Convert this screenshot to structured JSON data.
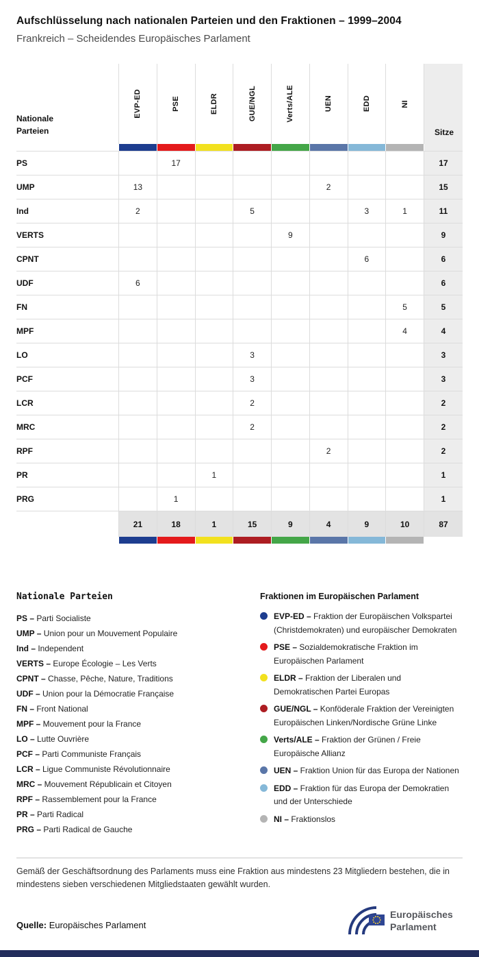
{
  "page": {
    "title": "Aufschlüsselung nach nationalen Parteien und den Fraktionen – 1999–2004",
    "subtitle": "Frankreich – Scheidendes Europäisches Parlament"
  },
  "colors": {
    "footer_bar": "#232d5c",
    "seats_column_bg": "#ededed",
    "totals_row_bg": "#e3e3e3"
  },
  "table": {
    "row_header_label": "Nationale Parteien",
    "seats_label": "Sitze",
    "factions": [
      {
        "label": "EVP-ED",
        "color": "#1d3d8f"
      },
      {
        "label": "PSE",
        "color": "#e41a1c"
      },
      {
        "label": "ELDR",
        "color": "#f2e11e"
      },
      {
        "label": "GUE/NGL",
        "color": "#ad1d22"
      },
      {
        "label": "Verts/ALE",
        "color": "#44a648"
      },
      {
        "label": "UEN",
        "color": "#5a76a8"
      },
      {
        "label": "EDD",
        "color": "#85b8d8"
      },
      {
        "label": "NI",
        "color": "#b4b4b4"
      }
    ],
    "rows": [
      {
        "party": "PS",
        "values": [
          "",
          "17",
          "",
          "",
          "",
          "",
          "",
          ""
        ],
        "seats": "17"
      },
      {
        "party": "UMP",
        "values": [
          "13",
          "",
          "",
          "",
          "",
          "2",
          "",
          ""
        ],
        "seats": "15"
      },
      {
        "party": "Ind",
        "values": [
          "2",
          "",
          "",
          "5",
          "",
          "",
          "3",
          "1"
        ],
        "seats": "11"
      },
      {
        "party": "VERTS",
        "values": [
          "",
          "",
          "",
          "",
          "9",
          "",
          "",
          ""
        ],
        "seats": "9"
      },
      {
        "party": "CPNT",
        "values": [
          "",
          "",
          "",
          "",
          "",
          "",
          "6",
          ""
        ],
        "seats": "6"
      },
      {
        "party": "UDF",
        "values": [
          "6",
          "",
          "",
          "",
          "",
          "",
          "",
          ""
        ],
        "seats": "6"
      },
      {
        "party": "FN",
        "values": [
          "",
          "",
          "",
          "",
          "",
          "",
          "",
          "5"
        ],
        "seats": "5"
      },
      {
        "party": "MPF",
        "values": [
          "",
          "",
          "",
          "",
          "",
          "",
          "",
          "4"
        ],
        "seats": "4"
      },
      {
        "party": "LO",
        "values": [
          "",
          "",
          "",
          "3",
          "",
          "",
          "",
          ""
        ],
        "seats": "3"
      },
      {
        "party": "PCF",
        "values": [
          "",
          "",
          "",
          "3",
          "",
          "",
          "",
          ""
        ],
        "seats": "3"
      },
      {
        "party": "LCR",
        "values": [
          "",
          "",
          "",
          "2",
          "",
          "",
          "",
          ""
        ],
        "seats": "2"
      },
      {
        "party": "MRC",
        "values": [
          "",
          "",
          "",
          "2",
          "",
          "",
          "",
          ""
        ],
        "seats": "2"
      },
      {
        "party": "RPF",
        "values": [
          "",
          "",
          "",
          "",
          "",
          "2",
          "",
          ""
        ],
        "seats": "2"
      },
      {
        "party": "PR",
        "values": [
          "",
          "",
          "1",
          "",
          "",
          "",
          "",
          ""
        ],
        "seats": "1"
      },
      {
        "party": "PRG",
        "values": [
          "",
          "1",
          "",
          "",
          "",
          "",
          "",
          ""
        ],
        "seats": "1"
      }
    ],
    "totals": {
      "values": [
        "21",
        "18",
        "1",
        "15",
        "9",
        "4",
        "9",
        "10"
      ],
      "seats": "87"
    }
  },
  "legend_parties": {
    "title": "Nationale Parteien",
    "items": [
      {
        "abbr": "PS",
        "name": "Parti Socialiste"
      },
      {
        "abbr": "UMP",
        "name": "Union pour un Mouvement Populaire"
      },
      {
        "abbr": "Ind",
        "name": "Independent"
      },
      {
        "abbr": "VERTS",
        "name": "Europe Écologie – Les Verts"
      },
      {
        "abbr": "CPNT",
        "name": "Chasse, Pêche, Nature, Traditions"
      },
      {
        "abbr": "UDF",
        "name": "Union pour la Démocratie Française"
      },
      {
        "abbr": "FN",
        "name": "Front National"
      },
      {
        "abbr": "MPF",
        "name": "Mouvement pour la France"
      },
      {
        "abbr": "LO",
        "name": "Lutte Ouvrière"
      },
      {
        "abbr": "PCF",
        "name": "Parti Communiste Français"
      },
      {
        "abbr": "LCR",
        "name": "Ligue Communiste Révolutionnaire"
      },
      {
        "abbr": "MRC",
        "name": "Mouvement Républicain et Citoyen"
      },
      {
        "abbr": "RPF",
        "name": "Rassemblement pour la France"
      },
      {
        "abbr": "PR",
        "name": "Parti Radical"
      },
      {
        "abbr": "PRG",
        "name": "Parti Radical de Gauche"
      }
    ]
  },
  "legend_factions": {
    "title": "Fraktionen im Europäischen Parlament",
    "items": [
      {
        "abbr": "EVP-ED",
        "name": "Fraktion der Europäischen Volkspartei (Christdemokraten) und europäischer Demokraten",
        "color": "#1d3d8f"
      },
      {
        "abbr": "PSE",
        "name": "Sozialdemokratische Fraktion im Europäischen Parlament",
        "color": "#e41a1c"
      },
      {
        "abbr": "ELDR",
        "name": "Fraktion der Liberalen und Demokratischen Partei Europas",
        "color": "#f2e11e"
      },
      {
        "abbr": "GUE/NGL",
        "name": "Konföderale Fraktion der Vereinigten Europäischen Linken/Nordische Grüne Linke",
        "color": "#ad1d22"
      },
      {
        "abbr": "Verts/ALE",
        "name": "Fraktion der Grünen / Freie Europäische Allianz",
        "color": "#44a648"
      },
      {
        "abbr": "UEN",
        "name": "Fraktion Union für das Europa der Nationen",
        "color": "#5a76a8"
      },
      {
        "abbr": "EDD",
        "name": "Fraktion für das Europa der Demokratien und der Unterschiede",
        "color": "#85b8d8"
      },
      {
        "abbr": "NI",
        "name": "Fraktionslos",
        "color": "#b4b4b4"
      }
    ]
  },
  "footnote": "Gemäß der Geschäftsordnung des Parlaments muss eine Fraktion aus mindestens 23 Mitgliedern bestehen, die in mindestens sieben verschiedenen Mitgliedstaaten gewählt wurden.",
  "source": {
    "label": "Quelle:",
    "value": "Europäisches Parlament"
  },
  "logo": {
    "line1": "Europäisches",
    "line2": "Parlament",
    "colors": {
      "arcs": "#253a7e",
      "flag": "#2e4593",
      "stars": "#f8d12e",
      "text": "#55575c"
    }
  },
  "chart_data": {
    "type": "table",
    "title": "Aufschlüsselung nach nationalen Parteien und den Fraktionen – 1999–2004",
    "subtitle": "Frankreich – Scheidendes Europäisches Parlament",
    "columns": [
      "Nationale Parteien",
      "EVP-ED",
      "PSE",
      "ELDR",
      "GUE/NGL",
      "Verts/ALE",
      "UEN",
      "EDD",
      "NI",
      "Sitze"
    ],
    "rows": [
      [
        "PS",
        null,
        17,
        null,
        null,
        null,
        null,
        null,
        null,
        17
      ],
      [
        "UMP",
        13,
        null,
        null,
        null,
        null,
        2,
        null,
        null,
        15
      ],
      [
        "Ind",
        2,
        null,
        null,
        5,
        null,
        null,
        3,
        1,
        11
      ],
      [
        "VERTS",
        null,
        null,
        null,
        null,
        9,
        null,
        null,
        null,
        9
      ],
      [
        "CPNT",
        null,
        null,
        null,
        null,
        null,
        null,
        6,
        null,
        6
      ],
      [
        "UDF",
        6,
        null,
        null,
        null,
        null,
        null,
        null,
        null,
        6
      ],
      [
        "FN",
        null,
        null,
        null,
        null,
        null,
        null,
        null,
        5,
        5
      ],
      [
        "MPF",
        null,
        null,
        null,
        null,
        null,
        null,
        null,
        4,
        4
      ],
      [
        "LO",
        null,
        null,
        null,
        3,
        null,
        null,
        null,
        null,
        3
      ],
      [
        "PCF",
        null,
        null,
        null,
        3,
        null,
        null,
        null,
        null,
        3
      ],
      [
        "LCR",
        null,
        null,
        null,
        2,
        null,
        null,
        null,
        null,
        2
      ],
      [
        "MRC",
        null,
        null,
        null,
        2,
        null,
        null,
        null,
        null,
        2
      ],
      [
        "RPF",
        null,
        null,
        null,
        null,
        null,
        2,
        null,
        null,
        2
      ],
      [
        "PR",
        null,
        null,
        1,
        null,
        null,
        null,
        null,
        null,
        1
      ],
      [
        "PRG",
        null,
        1,
        null,
        null,
        null,
        null,
        null,
        null,
        1
      ]
    ],
    "totals": [
      "",
      21,
      18,
      1,
      15,
      9,
      4,
      9,
      10,
      87
    ]
  }
}
